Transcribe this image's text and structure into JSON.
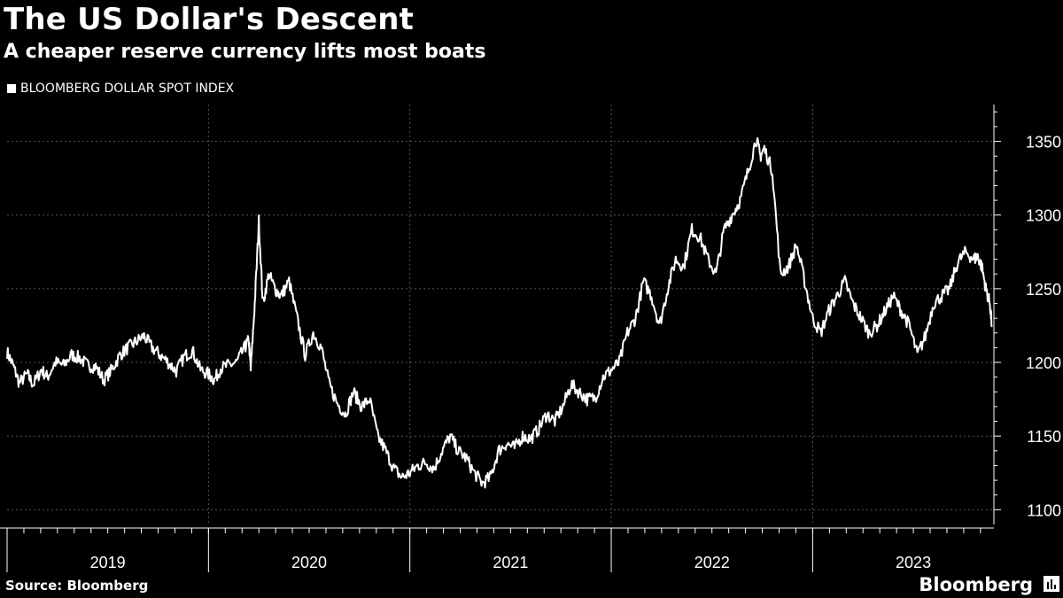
{
  "header": {
    "title": "The US Dollar's Descent",
    "subtitle": "A cheaper reserve currency lifts most boats"
  },
  "footer": {
    "source": "Source: Bloomberg",
    "brand": "Bloomberg",
    "brand_icon": "bloomberg-terminal-icon"
  },
  "colors": {
    "background": "#000000",
    "line": "#ffffff",
    "grid": "#555555",
    "text": "#ffffff"
  },
  "chart_data": {
    "type": "line",
    "title": "The US Dollar's Descent",
    "subtitle": "A cheaper reserve currency lifts most boats",
    "legend": [
      "BLOOMBERG DOLLAR SPOT INDEX"
    ],
    "legend_position": "top-left",
    "xlabel": "",
    "ylabel": "",
    "x_ticks": [
      "2019",
      "2020",
      "2021",
      "2022",
      "2023"
    ],
    "y_ticks": [
      1100,
      1150,
      1200,
      1250,
      1300,
      1350
    ],
    "ylim": [
      1090,
      1375
    ],
    "xlim": [
      2019.0,
      2023.9
    ],
    "grid": true,
    "series": [
      {
        "name": "BLOOMBERG DOLLAR SPOT INDEX",
        "x": [
          2019.0,
          2019.03,
          2019.06,
          2019.1,
          2019.13,
          2019.17,
          2019.2,
          2019.24,
          2019.28,
          2019.32,
          2019.36,
          2019.4,
          2019.44,
          2019.48,
          2019.52,
          2019.56,
          2019.6,
          2019.64,
          2019.68,
          2019.72,
          2019.76,
          2019.8,
          2019.84,
          2019.88,
          2019.92,
          2019.96,
          2020.0,
          2020.03,
          2020.06,
          2020.1,
          2020.14,
          2020.18,
          2020.2,
          2020.21,
          2020.23,
          2020.25,
          2020.27,
          2020.3,
          2020.33,
          2020.36,
          2020.4,
          2020.44,
          2020.48,
          2020.52,
          2020.56,
          2020.6,
          2020.64,
          2020.68,
          2020.72,
          2020.76,
          2020.8,
          2020.84,
          2020.88,
          2020.92,
          2020.96,
          2021.0,
          2021.04,
          2021.08,
          2021.12,
          2021.16,
          2021.2,
          2021.24,
          2021.28,
          2021.32,
          2021.36,
          2021.4,
          2021.44,
          2021.48,
          2021.52,
          2021.56,
          2021.6,
          2021.64,
          2021.68,
          2021.72,
          2021.76,
          2021.8,
          2021.84,
          2021.88,
          2021.92,
          2021.96,
          2022.0,
          2022.04,
          2022.08,
          2022.12,
          2022.16,
          2022.2,
          2022.24,
          2022.28,
          2022.32,
          2022.36,
          2022.4,
          2022.44,
          2022.48,
          2022.52,
          2022.56,
          2022.6,
          2022.64,
          2022.68,
          2022.72,
          2022.74,
          2022.76,
          2022.8,
          2022.84,
          2022.88,
          2022.92,
          2022.96,
          2023.0,
          2023.04,
          2023.08,
          2023.12,
          2023.16,
          2023.2,
          2023.24,
          2023.28,
          2023.32,
          2023.36,
          2023.4,
          2023.44,
          2023.48,
          2023.52,
          2023.56,
          2023.6,
          2023.64,
          2023.68,
          2023.72,
          2023.76,
          2023.8,
          2023.82,
          2023.84,
          2023.86,
          2023.88,
          2023.89
        ],
        "values": [
          1207,
          1198,
          1186,
          1192,
          1185,
          1195,
          1190,
          1200,
          1198,
          1205,
          1203,
          1198,
          1197,
          1188,
          1195,
          1205,
          1210,
          1214,
          1218,
          1210,
          1205,
          1200,
          1194,
          1204,
          1208,
          1195,
          1192,
          1188,
          1196,
          1198,
          1200,
          1210,
          1215,
          1195,
          1240,
          1296,
          1240,
          1260,
          1250,
          1245,
          1255,
          1230,
          1205,
          1220,
          1210,
          1185,
          1172,
          1165,
          1180,
          1170,
          1175,
          1150,
          1140,
          1128,
          1122,
          1125,
          1130,
          1132,
          1128,
          1140,
          1150,
          1140,
          1135,
          1125,
          1118,
          1122,
          1140,
          1145,
          1142,
          1150,
          1148,
          1155,
          1165,
          1160,
          1170,
          1185,
          1180,
          1175,
          1176,
          1190,
          1195,
          1200,
          1220,
          1230,
          1255,
          1245,
          1225,
          1250,
          1270,
          1265,
          1290,
          1285,
          1270,
          1260,
          1290,
          1300,
          1310,
          1330,
          1352,
          1340,
          1345,
          1330,
          1260,
          1265,
          1280,
          1255,
          1230,
          1220,
          1235,
          1245,
          1255,
          1240,
          1230,
          1220,
          1225,
          1235,
          1245,
          1235,
          1225,
          1205,
          1218,
          1240,
          1245,
          1250,
          1268,
          1275,
          1270,
          1272,
          1265,
          1250,
          1240,
          1225
        ]
      }
    ]
  }
}
